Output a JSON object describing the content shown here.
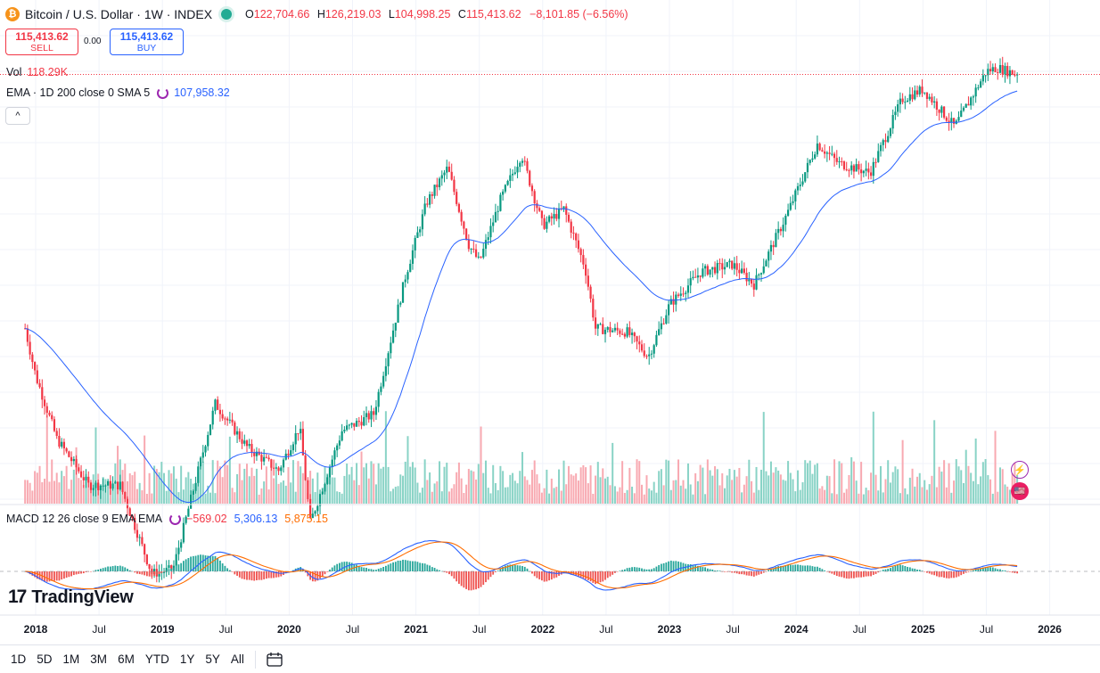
{
  "header": {
    "coin_symbol": "₿",
    "symbol": "Bitcoin / U.S. Dollar · 1W · INDEX",
    "open_label": "O",
    "open": "122,704.66",
    "high_label": "H",
    "high": "126,219.03",
    "low_label": "L",
    "low": "104,998.25",
    "close_label": "C",
    "close": "115,413.62",
    "change": "−8,101.85 (−6.56%)"
  },
  "trade": {
    "sell_price": "115,413.62",
    "sell_label": "SELL",
    "spread": "0.00",
    "buy_price": "115,413.62",
    "buy_label": "BUY"
  },
  "indicators": {
    "vol_label": "Vol",
    "vol_value": "118.29K",
    "ema_label": "EMA · 1D 200 close 0 SMA 5",
    "ema_value": "107,958.32",
    "macd_label": "MACD 12 26 close 9 EMA EMA",
    "macd_hist": "−569.02",
    "macd_line": "5,306.13",
    "macd_signal": "5,875.15"
  },
  "collapse_label": "^",
  "brand": {
    "mark": "17",
    "name": "TradingView"
  },
  "icons": {
    "bolt": "⚡",
    "flag": "🇺🇸"
  },
  "timeframes": [
    "1D",
    "5D",
    "1M",
    "3M",
    "6M",
    "YTD",
    "1Y",
    "5Y",
    "All"
  ],
  "colors": {
    "up": "#089981",
    "down": "#f23645",
    "ema": "#2962ff",
    "macd": "#2962ff",
    "signal": "#ff6d00",
    "grid": "#f0f3fa"
  },
  "chart_data": {
    "type": "candlestick",
    "series_name": "Bitcoin / U.S. Dollar",
    "x_tick_labels": [
      "2018",
      "Jul",
      "2019",
      "Jul",
      "2020",
      "Jul",
      "2021",
      "Jul",
      "2022",
      "Jul",
      "2023",
      "Jul",
      "2024",
      "Jul",
      "2025",
      "Jul",
      "2026"
    ],
    "y_scale": "log",
    "price_path_dates": [
      "2017-12",
      "2018-01",
      "2018-03",
      "2018-06",
      "2018-09",
      "2018-12",
      "2019-02",
      "2019-06",
      "2019-09",
      "2019-12",
      "2020-02",
      "2020-03",
      "2020-06",
      "2020-09",
      "2020-12",
      "2021-02",
      "2021-04",
      "2021-06",
      "2021-07",
      "2021-09",
      "2021-11",
      "2022-01",
      "2022-03",
      "2022-05",
      "2022-06",
      "2022-09",
      "2022-11",
      "2023-01",
      "2023-04",
      "2023-07",
      "2023-09",
      "2023-12",
      "2024-03",
      "2024-05",
      "2024-08",
      "2024-11",
      "2025-01",
      "2025-04",
      "2025-07",
      "2025-08",
      "2025-10"
    ],
    "price_path_values": [
      19500,
      14000,
      9000,
      6500,
      6500,
      3500,
      3600,
      11500,
      8500,
      7200,
      9800,
      5000,
      9500,
      10700,
      28000,
      47000,
      60000,
      35000,
      31000,
      48000,
      66000,
      40000,
      45000,
      30000,
      19500,
      19000,
      16000,
      23000,
      29000,
      30500,
      26500,
      42500,
      71000,
      62000,
      58000,
      97000,
      104000,
      80000,
      118000,
      121000,
      115413
    ]
  }
}
